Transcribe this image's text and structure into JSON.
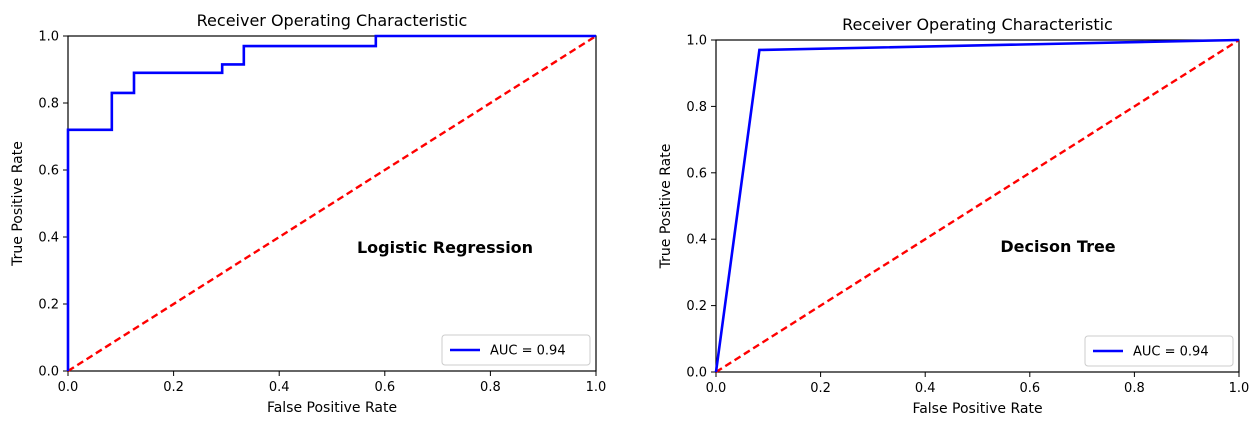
{
  "chart_data": [
    {
      "type": "line",
      "title": "Receiver Operating Characteristic",
      "xlabel": "False Positive Rate",
      "ylabel": "True Positive Rate",
      "xlim": [
        0,
        1
      ],
      "ylim": [
        0,
        1
      ],
      "x_ticks": [
        "0.0",
        "0.2",
        "0.4",
        "0.6",
        "0.8",
        "1.0"
      ],
      "y_ticks": [
        "0.0",
        "0.2",
        "0.4",
        "0.6",
        "0.8",
        "1.0"
      ],
      "grid": false,
      "legend_position": "lower-right",
      "annotation": "Logistic Regression",
      "series": [
        {
          "name": "AUC = 0.94",
          "color": "#0000ff",
          "style": "solid",
          "x": [
            0.0,
            0.0,
            0.083,
            0.083,
            0.125,
            0.125,
            0.292,
            0.292,
            0.333,
            0.333,
            0.583,
            0.583,
            1.0
          ],
          "y": [
            0.0,
            0.72,
            0.72,
            0.83,
            0.83,
            0.89,
            0.89,
            0.915,
            0.915,
            0.97,
            0.97,
            1.0,
            1.0
          ]
        },
        {
          "name": "",
          "color": "#ff0000",
          "style": "dashed",
          "x": [
            0,
            1
          ],
          "y": [
            0,
            1
          ]
        }
      ]
    },
    {
      "type": "line",
      "title": "Receiver Operating Characteristic",
      "xlabel": "False Positive Rate",
      "ylabel": "True Positive Rate",
      "xlim": [
        0,
        1
      ],
      "ylim": [
        0,
        1
      ],
      "x_ticks": [
        "0.0",
        "0.2",
        "0.4",
        "0.6",
        "0.8",
        "1.0"
      ],
      "y_ticks": [
        "0.0",
        "0.2",
        "0.4",
        "0.6",
        "0.8",
        "1.0"
      ],
      "grid": false,
      "legend_position": "lower-right",
      "annotation": "Decison Tree",
      "series": [
        {
          "name": "AUC = 0.94",
          "color": "#0000ff",
          "style": "solid",
          "x": [
            0.0,
            0.083,
            1.0
          ],
          "y": [
            0.0,
            0.97,
            1.0
          ]
        },
        {
          "name": "",
          "color": "#ff0000",
          "style": "dashed",
          "x": [
            0,
            1
          ],
          "y": [
            0,
            1
          ]
        }
      ]
    }
  ]
}
